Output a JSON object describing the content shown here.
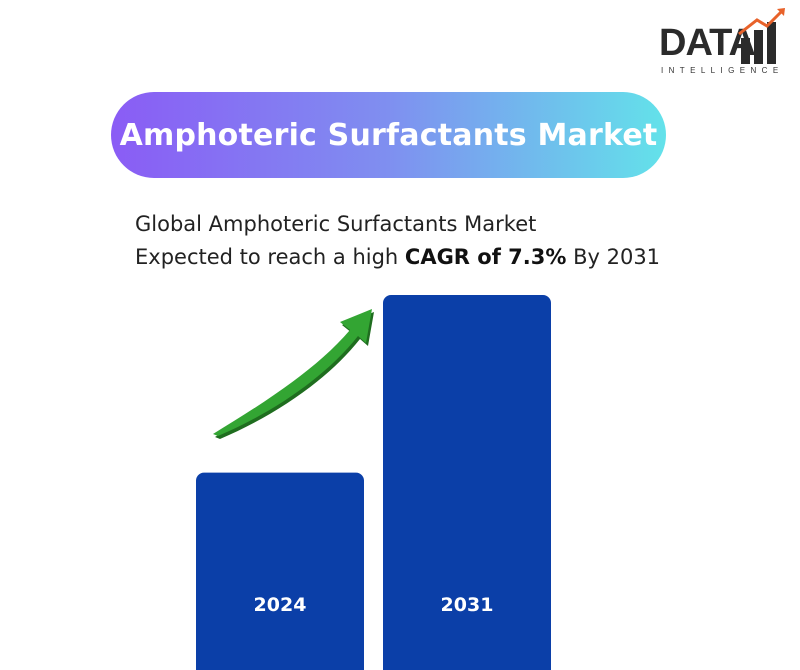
{
  "logo": {
    "word": "DATA",
    "tagline": "INTELLIGENCE",
    "icon": "rising-bars-logo-icon"
  },
  "title": "Amphoteric Surfactants Market",
  "subtitle": {
    "line1": "Global Amphoteric Surfactants Market",
    "line2_prefix": "Expected to reach a high ",
    "line2_bold": "CAGR of 7.3%",
    "line2_suffix": " By 2031"
  },
  "colors": {
    "bar": "#0b3fa8",
    "arrow": "#2e9a2e",
    "pill_start": "#8a5cf5",
    "pill_end": "#63e2ea"
  },
  "chart_data": {
    "type": "bar",
    "categories": [
      "2024",
      "2031"
    ],
    "values": [
      1.0,
      1.9
    ],
    "title": "",
    "xlabel": "",
    "ylabel": "",
    "ylim": [
      0,
      1.9
    ],
    "grid": false,
    "annotations": [
      "growth-arrow-icon"
    ]
  }
}
